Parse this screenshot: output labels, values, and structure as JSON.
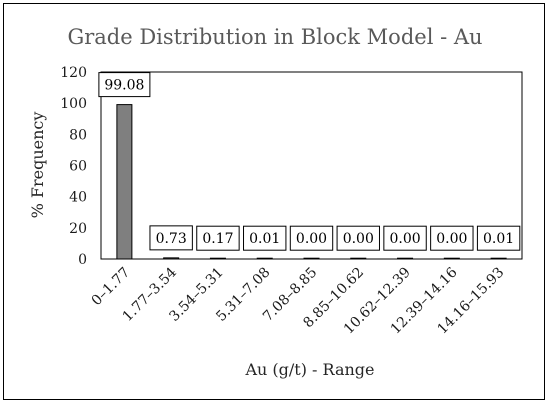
{
  "chart_data": {
    "type": "bar",
    "title": "Grade Distribution in Block Model - Au",
    "xlabel": "Au (g/t) - Range",
    "ylabel": "% Frequency",
    "categories": [
      "0–1.77",
      "1.77–3.54",
      "3.54–5.31",
      "5.31–7.08",
      "7.08–8.85",
      "8.85–10.62",
      "10.62–12.39",
      "12.39–14.16",
      "14.16–15.93"
    ],
    "values": [
      99.08,
      0.73,
      0.17,
      0.01,
      0.0,
      0.0,
      0.0,
      0.0,
      0.01
    ],
    "value_labels": [
      "99.08",
      "0.73",
      "0.17",
      "0.01",
      "0.00",
      "0.00",
      "0.00",
      "0.00",
      "0.01"
    ],
    "ylim": [
      0,
      120
    ],
    "yticks": [
      0,
      20,
      40,
      60,
      80,
      100,
      120
    ],
    "grid": false,
    "legend": "none",
    "bar_color": "#7f7f7f",
    "data_labels": true
  }
}
